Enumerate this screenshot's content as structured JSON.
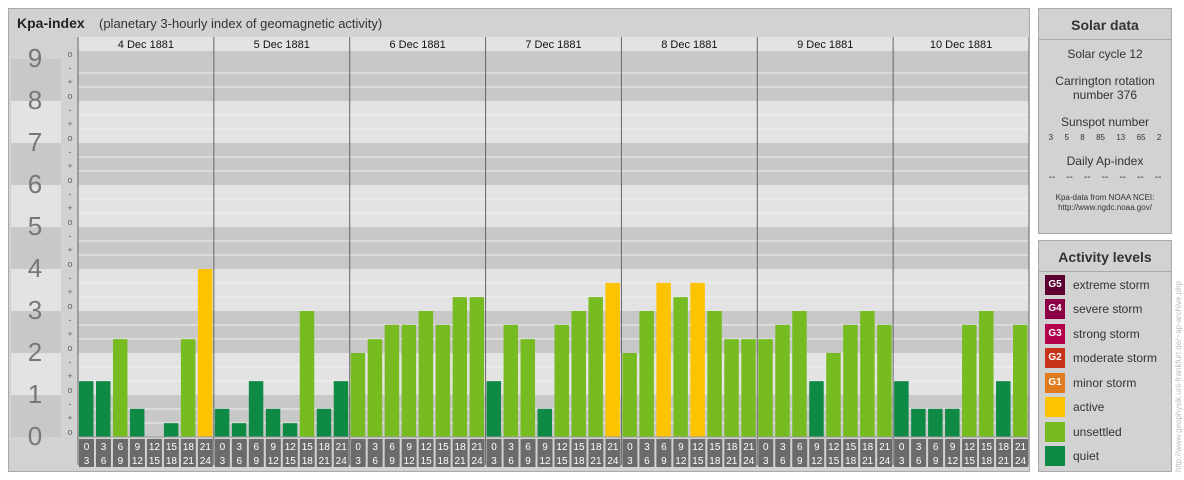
{
  "title": "Kpa-index",
  "subtitle": "(planetary 3-hourly index of geomagnetic activity)",
  "chart_data": {
    "type": "bar",
    "title": "Kpa-index",
    "subtitle": "(planetary 3-hourly index of geomagnetic activity)",
    "ylim": [
      0,
      9
    ],
    "y_ticks": [
      "0",
      "1",
      "2",
      "3",
      "4",
      "5",
      "6",
      "7",
      "8",
      "9"
    ],
    "sub_ticks": [
      "o",
      "+",
      "-"
    ],
    "days": [
      "4 Dec 1881",
      "5 Dec 1881",
      "6 Dec 1881",
      "7 Dec 1881",
      "8 Dec 1881",
      "9 Dec 1881",
      "10 Dec 1881"
    ],
    "interval_start": [
      "0",
      "3",
      "6",
      "9",
      "12",
      "15",
      "18",
      "21"
    ],
    "interval_end": [
      "3",
      "6",
      "9",
      "12",
      "15",
      "18",
      "21",
      "24"
    ],
    "values": [
      1.33,
      1.33,
      2.33,
      0.67,
      0.0,
      0.33,
      2.33,
      4.0,
      0.67,
      0.33,
      1.33,
      0.67,
      0.33,
      3.0,
      0.67,
      1.33,
      2.0,
      2.33,
      2.67,
      2.67,
      3.0,
      2.67,
      3.33,
      3.33,
      1.33,
      2.67,
      2.33,
      0.67,
      2.67,
      3.0,
      3.33,
      3.67,
      2.0,
      3.0,
      3.67,
      3.33,
      3.67,
      3.0,
      2.33,
      2.33,
      2.33,
      2.67,
      3.0,
      1.33,
      2.0,
      2.67,
      3.0,
      2.67,
      1.33,
      0.67,
      0.67,
      0.67,
      2.67,
      3.0,
      1.33,
      2.67
    ],
    "colors": {
      "quiet": "#0e8a45",
      "unsettled": "#76bc21",
      "active": "#fdc300",
      "G1": "#e07b1f",
      "G2": "#c8341b",
      "G3": "#b3004c",
      "G4": "#8b0045",
      "G5": "#5b0031"
    }
  },
  "solar": {
    "title": "Solar data",
    "cycle": "Solar cycle 12",
    "rotation_1": "Carrington rotation",
    "rotation_2": "number 376",
    "sunspot_label": "Sunspot number",
    "sunspots": [
      "3",
      "5",
      "8",
      "85",
      "13",
      "65",
      "2"
    ],
    "ap_label": "Daily Ap-index",
    "ap_values": [
      "--",
      "--",
      "--",
      "--",
      "--",
      "--",
      "--"
    ],
    "source_1": "Kpa-data from NOAA NCEI:",
    "source_2": "http://www.ngdc.noaa.gov/"
  },
  "levels": {
    "title": "Activity levels",
    "items": [
      {
        "badge": "G5",
        "label": "extreme storm",
        "color": "#5b0031"
      },
      {
        "badge": "G4",
        "label": "severe storm",
        "color": "#8b0045"
      },
      {
        "badge": "G3",
        "label": "strong storm",
        "color": "#b3004c"
      },
      {
        "badge": "G2",
        "label": "moderate storm",
        "color": "#c8341b"
      },
      {
        "badge": "G1",
        "label": "minor storm",
        "color": "#e07b1f"
      },
      {
        "badge": "",
        "label": "active",
        "color": "#fdc300"
      },
      {
        "badge": "",
        "label": "unsettled",
        "color": "#76bc21"
      },
      {
        "badge": "",
        "label": "quiet",
        "color": "#0e8a45"
      }
    ]
  },
  "credit": "http://www.geophysik.uni-frankfurt.de/~ap-archive.php"
}
